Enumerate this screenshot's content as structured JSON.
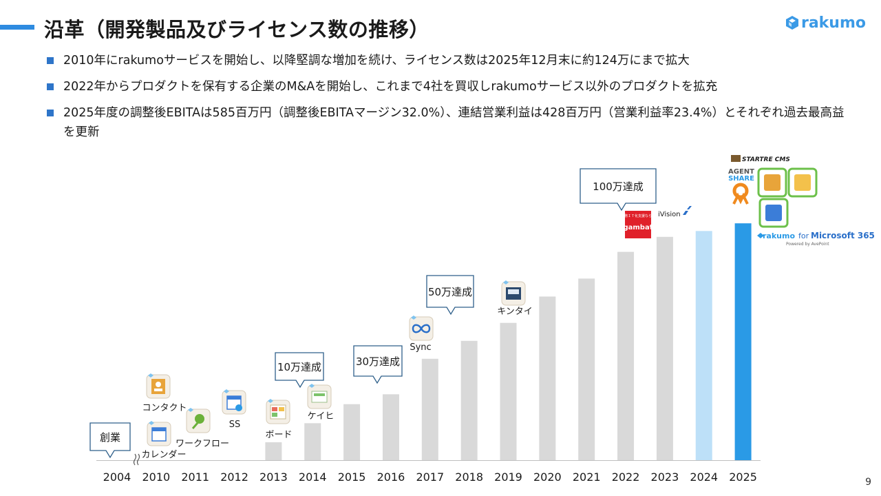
{
  "header": {
    "title": "沿革（開発製品及びライセンス数の推移）",
    "logo_text": "rakumo"
  },
  "bullets": [
    "2010年にrakumoサービスを開始し、以降堅調な増加を続け、ライセンス数は2025年12月末に約124万にまで拡大",
    "2022年からプロダクトを保有する企業のM&Aを開始し、これまで4社を買収しrakumoサービス以外のプロダクトを拡充",
    "2025年度の調整後EBITAは585百万円（調整後EBITAマージン32.0%）、連結営業利益は428百万円（営業利益率23.4%）とそれぞれ過去最高益を更新"
  ],
  "page_number": "9",
  "colors": {
    "accent": "#2e8be0",
    "bar_gray": "#d9d9d9",
    "bar_light_blue": "#bde0f8",
    "bar_blue": "#2a9ae6",
    "callout_border": "#2e5f8a",
    "product_frame": "#6cc04a"
  },
  "chart_data": {
    "type": "bar",
    "categories": [
      "2004",
      "2010",
      "2011",
      "2012",
      "2013",
      "2014",
      "2015",
      "2016",
      "2017",
      "2018",
      "2019",
      "2020",
      "2021",
      "2022",
      "2023",
      "2024",
      "2025"
    ],
    "values": [
      0,
      0,
      0,
      0,
      4.9,
      10.1,
      15.3,
      18.0,
      27.7,
      32.6,
      37.5,
      44.7,
      49.6,
      56.9,
      61.0,
      62.6,
      64.7
    ],
    "series_colors": [
      "gray",
      "gray",
      "gray",
      "gray",
      "gray",
      "gray",
      "gray",
      "gray",
      "gray",
      "gray",
      "gray",
      "gray",
      "gray",
      "gray",
      "gray",
      "light-blue",
      "blue"
    ],
    "ylim": [
      0,
      70
    ],
    "axis_break_after": "2004",
    "milestones": [
      {
        "label": "創業",
        "year": "2004"
      },
      {
        "label": "10万達成",
        "year": "2014"
      },
      {
        "label": "30万達成",
        "year": "2016"
      },
      {
        "label": "50万達成",
        "year": "2017"
      },
      {
        "label": "100万達成",
        "year": "2022"
      }
    ],
    "products": [
      {
        "label": "カレンダー",
        "icon": "calendar-icon"
      },
      {
        "label": "コンタクト",
        "icon": "contact-icon"
      },
      {
        "label": "ワークフロー",
        "icon": "workflow-icon"
      },
      {
        "label": "SS",
        "icon": "schedule-icon"
      },
      {
        "label": "ボード",
        "icon": "board-icon"
      },
      {
        "label": "ケイヒ",
        "icon": "expense-icon"
      },
      {
        "label": "Sync",
        "icon": "sync-icon"
      },
      {
        "label": "キンタイ",
        "icon": "attendance-icon"
      }
    ],
    "acquisitions": {
      "gambat_top": "業務ＩＴ化支援ならば",
      "gambat": "gambat",
      "ivision": "iVision",
      "startre": "STARTRE CMS",
      "agent": "AGENT",
      "share": "SHARE",
      "ms365_brand": "rakumo",
      "ms365_for": "for",
      "ms365_product": "Microsoft 365",
      "ms365_powered": "Powered by AvePoint"
    }
  }
}
